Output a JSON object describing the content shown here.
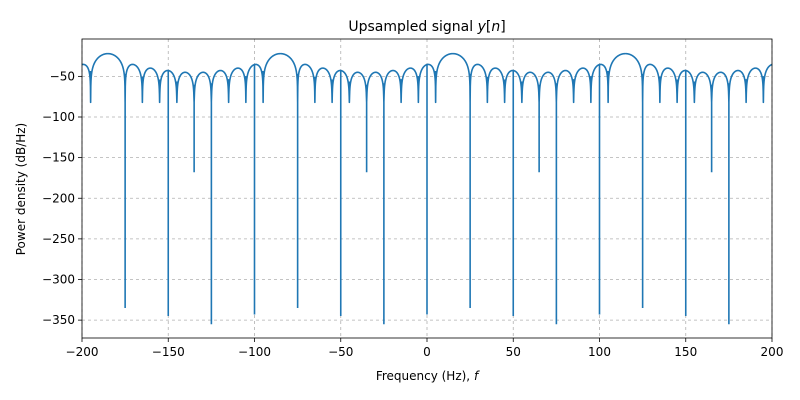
{
  "chart_data": {
    "type": "line",
    "title_main": "Upsampled signal ",
    "title_math": "y",
    "title_open": "[",
    "title_var": "n",
    "title_close": "]",
    "xlabel_text": "Frequency (Hz), ",
    "xlabel_math": "f",
    "ylabel": "Power density (dB/Hz)",
    "xlim": [
      -200,
      200
    ],
    "ylim": [
      -372,
      -4
    ],
    "x_ticks": [
      -200,
      -150,
      -100,
      -50,
      0,
      50,
      100,
      150,
      200
    ],
    "y_ticks": [
      -50,
      -100,
      -150,
      -200,
      -250,
      -300,
      -350
    ],
    "x_tick_labels": [
      "−200",
      "−150",
      "−100",
      "−50",
      "0",
      "50",
      "100",
      "150",
      "200"
    ],
    "y_tick_labels": [
      "−50",
      "−100",
      "−150",
      "−200",
      "−250",
      "−300",
      "−350"
    ],
    "grid": true,
    "line_color": "#1f77b4",
    "spectrum": {
      "peak_db": -22,
      "main_lobe_centers": [
        -185,
        -85,
        15,
        115
      ],
      "deep_nulls": [
        {
          "x": -175,
          "y": -335
        },
        {
          "x": -150,
          "y": -345
        },
        {
          "x": -125,
          "y": -355
        },
        {
          "x": -100,
          "y": -343
        },
        {
          "x": -75,
          "y": -335
        },
        {
          "x": -50,
          "y": -345
        },
        {
          "x": -25,
          "y": -355
        },
        {
          "x": 0,
          "y": -343
        },
        {
          "x": 25,
          "y": -335
        },
        {
          "x": 50,
          "y": -345
        },
        {
          "x": 75,
          "y": -355
        },
        {
          "x": 100,
          "y": -343
        },
        {
          "x": 125,
          "y": -335
        },
        {
          "x": 150,
          "y": -345
        },
        {
          "x": 175,
          "y": -355
        }
      ],
      "mid_nulls": [
        {
          "x": -135,
          "y": -168
        },
        {
          "x": -35,
          "y": -168
        },
        {
          "x": 65,
          "y": -168
        },
        {
          "x": 165,
          "y": -168
        }
      ]
    }
  }
}
